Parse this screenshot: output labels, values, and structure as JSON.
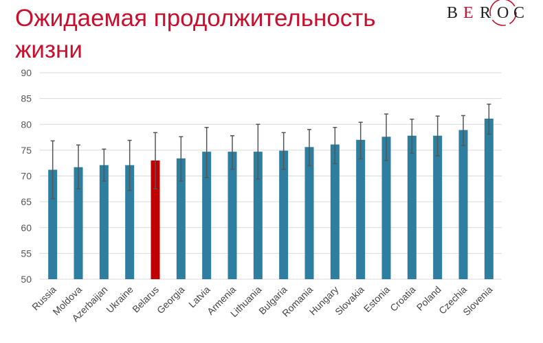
{
  "title": "Ожидаемая продолжительность жизни",
  "logo": {
    "letters": [
      "B",
      "E",
      "R",
      "O",
      "C"
    ]
  },
  "colors": {
    "bar": "#2e7ea0",
    "highlight": "#c00000",
    "error_bar": "#555555",
    "grid": "#d9d9d9",
    "title": "#c8102e"
  },
  "chart_data": {
    "type": "bar",
    "title": "",
    "xlabel": "",
    "ylabel": "",
    "ylim": [
      50,
      90
    ],
    "yticks": [
      50,
      55,
      60,
      65,
      70,
      75,
      80,
      85,
      90
    ],
    "grid": true,
    "highlight_category": "Belarus",
    "categories": [
      "Russia",
      "Moldova",
      "Azerbaijan",
      "Ukraine",
      "Belarus",
      "Georgia",
      "Latvia",
      "Armenia",
      "Lithuania",
      "Bulgaria",
      "Romania",
      "Hungary",
      "Slovakia",
      "Estonia",
      "Croatia",
      "Poland",
      "Czechia",
      "Slovenia"
    ],
    "values": [
      71.2,
      71.7,
      72.1,
      72.1,
      73.0,
      73.4,
      74.7,
      74.7,
      74.7,
      74.9,
      75.6,
      76.1,
      77.0,
      77.6,
      77.8,
      77.8,
      78.9,
      81.1
    ],
    "error_low": [
      65.6,
      67.5,
      69.0,
      67.2,
      67.5,
      69.0,
      69.7,
      71.3,
      69.4,
      71.3,
      72.0,
      72.4,
      73.3,
      73.0,
      74.4,
      73.9,
      75.9,
      78.1
    ],
    "error_high": [
      76.8,
      76.0,
      75.2,
      76.9,
      78.4,
      77.6,
      79.4,
      77.8,
      80.0,
      78.4,
      79.0,
      79.4,
      80.4,
      82.0,
      81.0,
      81.6,
      81.7,
      83.9
    ]
  }
}
